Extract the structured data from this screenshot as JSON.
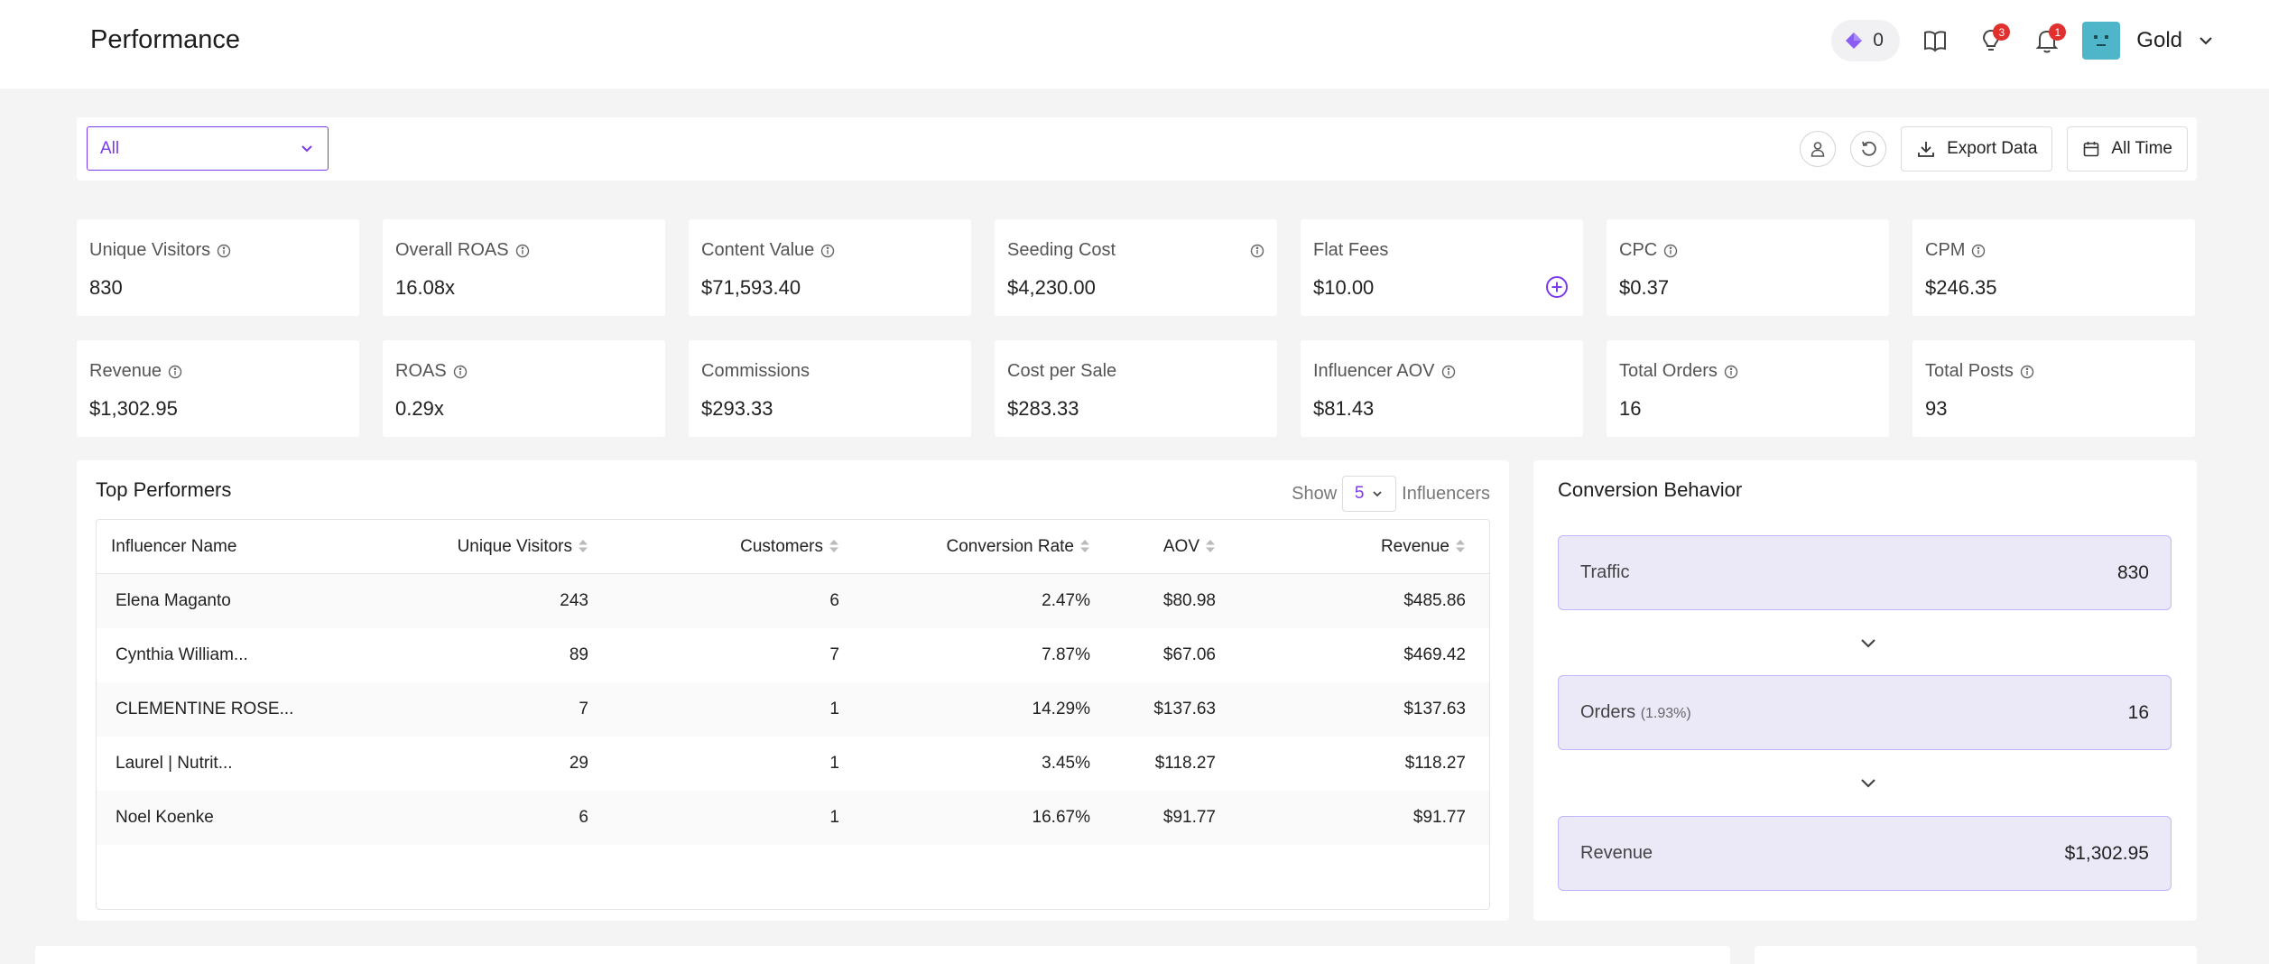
{
  "header": {
    "title": "Performance",
    "points": "0",
    "tips_badge": "3",
    "notif_badge": "1",
    "user_name": "Gold"
  },
  "filters": {
    "select_value": "All",
    "export_label": "Export Data",
    "date_label": "All Time"
  },
  "metrics": [
    {
      "label": "Unique Visitors",
      "value": "830"
    },
    {
      "label": "Overall ROAS",
      "value": "16.08x"
    },
    {
      "label": "Content Value",
      "value": "$71,593.40"
    },
    {
      "label": "Seeding Cost",
      "value": "$4,230.00"
    },
    {
      "label": "Flat Fees",
      "value": "$10.00"
    },
    {
      "label": "CPC",
      "value": "$0.37"
    },
    {
      "label": "CPM",
      "value": "$246.35"
    },
    {
      "label": "Revenue",
      "value": "$1,302.95"
    },
    {
      "label": "ROAS",
      "value": "0.29x"
    },
    {
      "label": "Commissions",
      "value": "$293.33"
    },
    {
      "label": "Cost per Sale",
      "value": "$283.33"
    },
    {
      "label": "Influencer AOV",
      "value": "$81.43"
    },
    {
      "label": "Total Orders",
      "value": "16"
    },
    {
      "label": "Total Posts",
      "value": "93"
    }
  ],
  "top_performers": {
    "title": "Top Performers",
    "show_label": "Show",
    "show_value": "5",
    "show_suffix": "Influencers",
    "columns": [
      "Influencer Name",
      "Unique Visitors",
      "Customers",
      "Conversion Rate",
      "AOV",
      "Revenue"
    ],
    "rows": [
      [
        "Elena Maganto",
        "243",
        "6",
        "2.47%",
        "$80.98",
        "$485.86"
      ],
      [
        "Cynthia William...",
        "89",
        "7",
        "7.87%",
        "$67.06",
        "$469.42"
      ],
      [
        "CLEMENTINE ROSE...",
        "7",
        "1",
        "14.29%",
        "$137.63",
        "$137.63"
      ],
      [
        "Laurel | Nutrit...",
        "29",
        "1",
        "3.45%",
        "$118.27",
        "$118.27"
      ],
      [
        "Noel Koenke",
        "6",
        "1",
        "16.67%",
        "$91.77",
        "$91.77"
      ]
    ]
  },
  "conversion": {
    "title": "Conversion Behavior",
    "traffic_label": "Traffic",
    "traffic_value": "830",
    "orders_label": "Orders",
    "orders_pct": "(1.93%)",
    "orders_value": "16",
    "revenue_label": "Revenue",
    "revenue_value": "$1,302.95"
  },
  "colors": {
    "accent": "#7c3aed",
    "badge": "#e0312f",
    "funnel_bg": "#ebe9f8"
  }
}
